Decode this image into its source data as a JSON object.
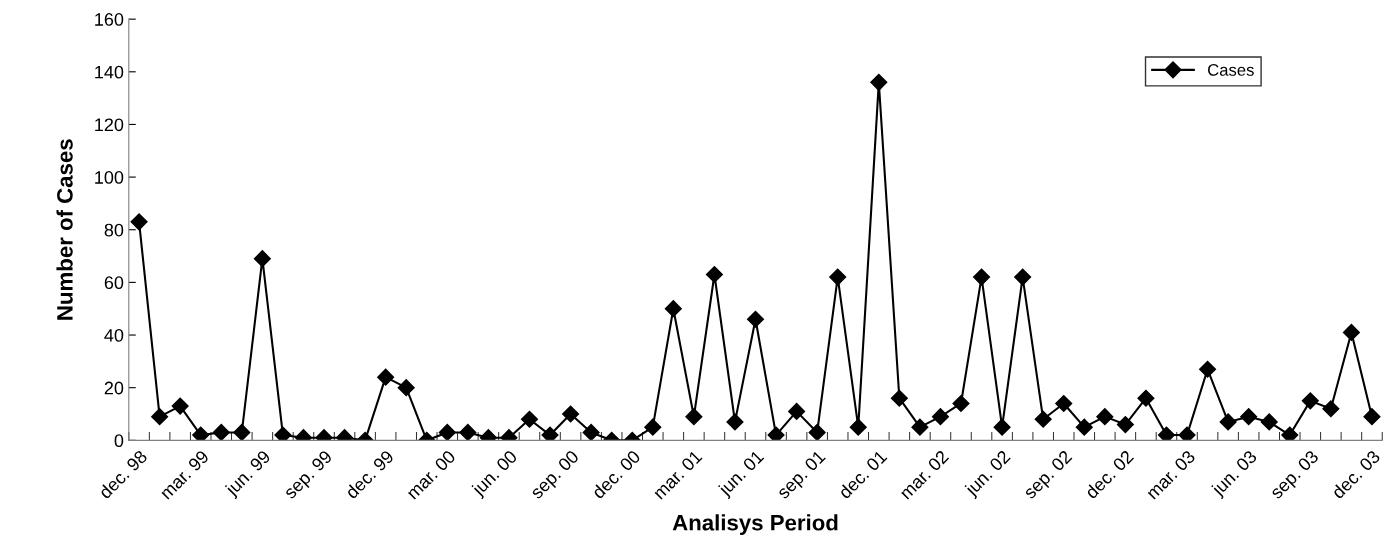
{
  "chart_data": {
    "type": "line",
    "xlabel": "Analisys Period",
    "ylabel": "Number of Cases",
    "categories": [
      "dec. 98",
      null,
      null,
      "mar. 99",
      null,
      null,
      "jun. 99",
      null,
      null,
      "sep. 99",
      null,
      null,
      "dec. 99",
      null,
      null,
      "mar. 00",
      null,
      null,
      "jun. 00",
      null,
      null,
      "sep. 00",
      null,
      null,
      "dec. 00",
      null,
      null,
      "mar. 01",
      null,
      null,
      "jun. 01",
      null,
      null,
      "sep. 01",
      null,
      null,
      "dec. 01",
      null,
      null,
      "mar. 02",
      null,
      null,
      "jun. 02",
      null,
      null,
      "sep. 02",
      null,
      null,
      "dec. 02",
      null,
      null,
      "mar. 03",
      null,
      null,
      "jun. 03",
      null,
      null,
      "sep. 03",
      null,
      null,
      "dec. 03"
    ],
    "series": [
      {
        "name": "Cases",
        "color": "#000000",
        "values": [
          83,
          9,
          13,
          2,
          3,
          3,
          69,
          2,
          1,
          1,
          1,
          0,
          24,
          20,
          0,
          3,
          3,
          1,
          1,
          8,
          2,
          10,
          3,
          0,
          0,
          5,
          50,
          9,
          63,
          7,
          46,
          2,
          11,
          3,
          62,
          5,
          136,
          16,
          5,
          9,
          14,
          62,
          5,
          62,
          8,
          14,
          5,
          9,
          6,
          16,
          2,
          2,
          27,
          7,
          9,
          7,
          2,
          15,
          12,
          41,
          9
        ]
      }
    ],
    "ylim": [
      0,
      160
    ],
    "yticks": [
      0,
      20,
      40,
      60,
      80,
      100,
      120,
      140,
      160
    ],
    "marker": "diamond",
    "line_style": "solid",
    "grid": false,
    "legend": "top right"
  }
}
